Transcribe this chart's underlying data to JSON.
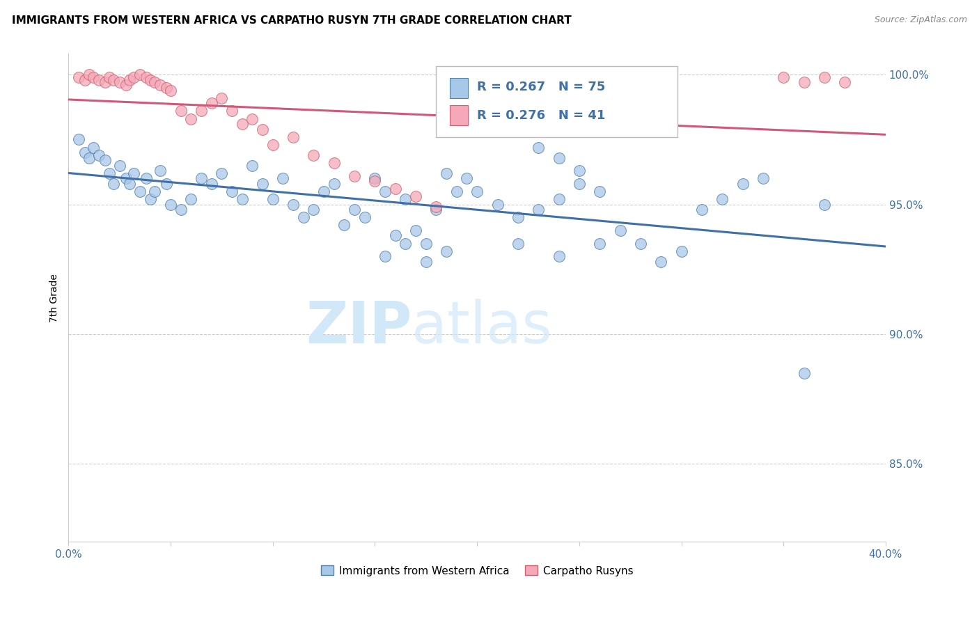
{
  "title": "IMMIGRANTS FROM WESTERN AFRICA VS CARPATHO RUSYN 7TH GRADE CORRELATION CHART",
  "source": "Source: ZipAtlas.com",
  "ylabel": "7th Grade",
  "xlim": [
    0.0,
    0.4
  ],
  "ylim": [
    0.82,
    1.008
  ],
  "legend_label1": "Immigrants from Western Africa",
  "legend_label2": "Carpatho Rusyns",
  "R1": 0.267,
  "N1": 75,
  "R2": 0.276,
  "N2": 41,
  "blue_color": "#A8C8E8",
  "pink_color": "#F4A8B8",
  "blue_edge_color": "#5080B0",
  "pink_edge_color": "#D06070",
  "blue_line_color": "#4070A8",
  "pink_line_color": "#D05878",
  "watermark_color": "#D0E8F8",
  "blue_scatter_x": [
    0.005,
    0.008,
    0.01,
    0.012,
    0.015,
    0.018,
    0.02,
    0.022,
    0.025,
    0.028,
    0.03,
    0.032,
    0.035,
    0.038,
    0.04,
    0.042,
    0.045,
    0.048,
    0.05,
    0.055,
    0.06,
    0.065,
    0.07,
    0.075,
    0.08,
    0.085,
    0.09,
    0.095,
    0.1,
    0.105,
    0.11,
    0.115,
    0.12,
    0.125,
    0.13,
    0.135,
    0.14,
    0.145,
    0.15,
    0.155,
    0.16,
    0.165,
    0.17,
    0.175,
    0.18,
    0.185,
    0.19,
    0.195,
    0.2,
    0.21,
    0.22,
    0.23,
    0.24,
    0.25,
    0.26,
    0.27,
    0.28,
    0.29,
    0.3,
    0.31,
    0.32,
    0.33,
    0.34,
    0.22,
    0.24,
    0.26,
    0.155,
    0.165,
    0.175,
    0.185,
    0.36,
    0.37,
    0.25,
    0.24,
    0.23
  ],
  "blue_scatter_y": [
    0.975,
    0.97,
    0.968,
    0.972,
    0.969,
    0.967,
    0.962,
    0.958,
    0.965,
    0.96,
    0.958,
    0.962,
    0.955,
    0.96,
    0.952,
    0.955,
    0.963,
    0.958,
    0.95,
    0.948,
    0.952,
    0.96,
    0.958,
    0.962,
    0.955,
    0.952,
    0.965,
    0.958,
    0.952,
    0.96,
    0.95,
    0.945,
    0.948,
    0.955,
    0.958,
    0.942,
    0.948,
    0.945,
    0.96,
    0.955,
    0.938,
    0.952,
    0.94,
    0.935,
    0.948,
    0.962,
    0.955,
    0.96,
    0.955,
    0.95,
    0.945,
    0.948,
    0.952,
    0.958,
    0.955,
    0.94,
    0.935,
    0.928,
    0.932,
    0.948,
    0.952,
    0.958,
    0.96,
    0.935,
    0.93,
    0.935,
    0.93,
    0.935,
    0.928,
    0.932,
    0.885,
    0.95,
    0.963,
    0.968,
    0.972
  ],
  "pink_scatter_x": [
    0.005,
    0.008,
    0.01,
    0.012,
    0.015,
    0.018,
    0.02,
    0.022,
    0.025,
    0.028,
    0.03,
    0.032,
    0.035,
    0.038,
    0.04,
    0.042,
    0.045,
    0.048,
    0.05,
    0.055,
    0.06,
    0.065,
    0.07,
    0.075,
    0.08,
    0.085,
    0.09,
    0.095,
    0.1,
    0.11,
    0.12,
    0.13,
    0.14,
    0.15,
    0.16,
    0.17,
    0.18,
    0.35,
    0.36,
    0.37,
    0.38
  ],
  "pink_scatter_y": [
    0.999,
    0.998,
    1.0,
    0.999,
    0.998,
    0.997,
    0.999,
    0.998,
    0.997,
    0.996,
    0.998,
    0.999,
    1.0,
    0.999,
    0.998,
    0.997,
    0.996,
    0.995,
    0.994,
    0.986,
    0.983,
    0.986,
    0.989,
    0.991,
    0.986,
    0.981,
    0.983,
    0.979,
    0.973,
    0.976,
    0.969,
    0.966,
    0.961,
    0.959,
    0.956,
    0.953,
    0.949,
    0.999,
    0.997,
    0.999,
    0.997
  ]
}
